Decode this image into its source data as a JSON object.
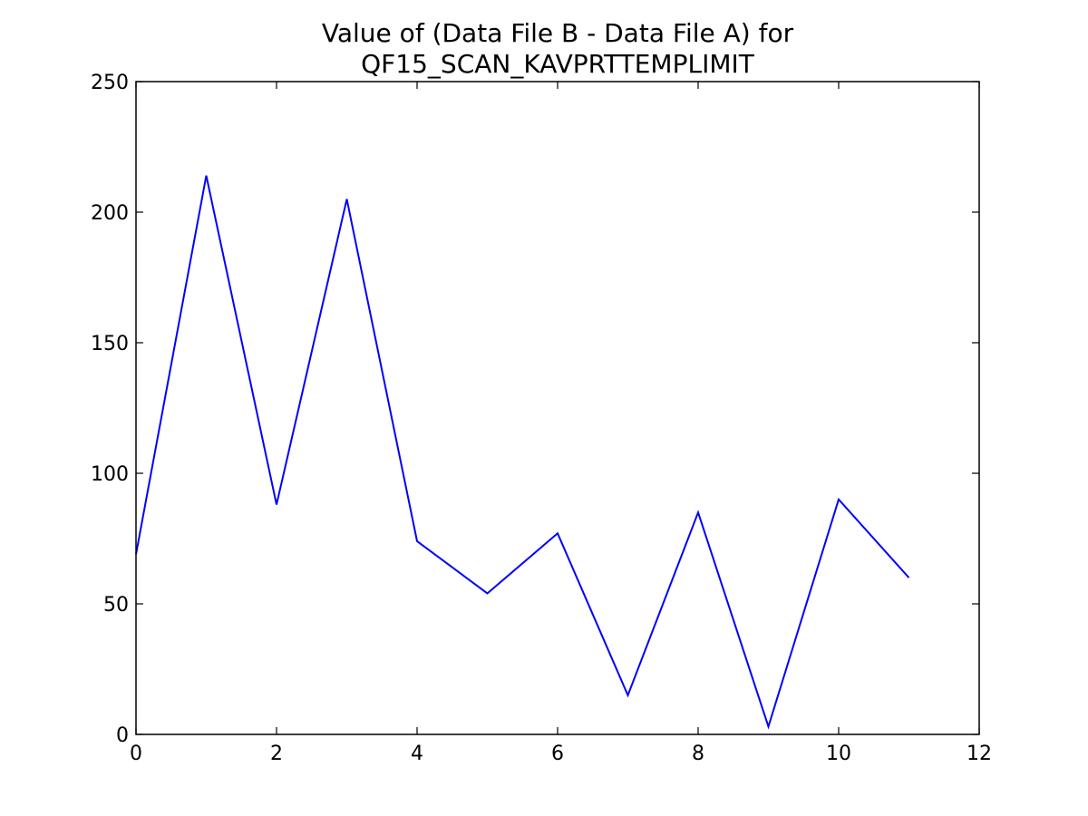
{
  "chart_data": {
    "type": "line",
    "title_lines": [
      "Value of (Data File B - Data File A) for",
      "QF15_SCAN_KAVPRTTEMPLIMIT"
    ],
    "xlabel": "",
    "ylabel": "",
    "xlim": [
      0,
      12
    ],
    "ylim": [
      0,
      250
    ],
    "x_ticks": [
      0,
      2,
      4,
      6,
      8,
      10,
      12
    ],
    "y_ticks": [
      0,
      50,
      100,
      150,
      200,
      250
    ],
    "grid": false,
    "legend": "none",
    "series": [
      {
        "color": "#0000ff",
        "x": [
          0,
          1,
          2,
          3,
          4,
          5,
          6,
          7,
          8,
          9,
          10,
          11
        ],
        "y": [
          69,
          214,
          88,
          205,
          74,
          54,
          77,
          15,
          85,
          3,
          90,
          60
        ]
      }
    ]
  }
}
